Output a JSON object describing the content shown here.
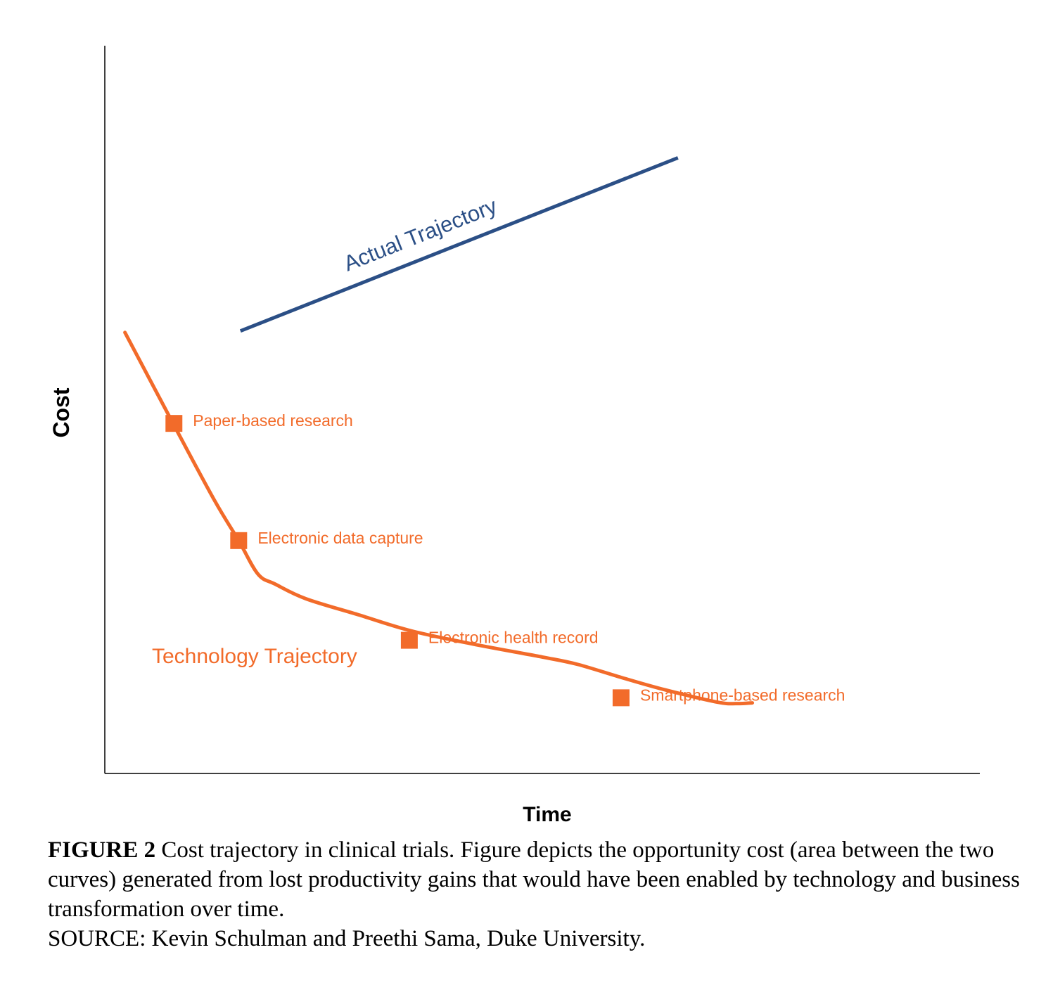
{
  "chart_data": {
    "type": "line",
    "title": "",
    "xlabel": "Time",
    "ylabel": "Cost",
    "x_ticks": "none",
    "y_ticks": "none",
    "grid": false,
    "legend": "none",
    "colors": {
      "actual": "#2b4f86",
      "technology": "#f26b2a",
      "axis": "#000000"
    },
    "series": [
      {
        "name": "Actual Trajectory",
        "label_style": "rotated along line",
        "points": [
          [
            0.155,
            0.608
          ],
          [
            0.655,
            0.846
          ]
        ]
      },
      {
        "name": "Technology Trajectory",
        "points": [
          [
            0.023,
            0.606
          ],
          [
            0.078,
            0.481
          ],
          [
            0.125,
            0.376
          ],
          [
            0.153,
            0.32
          ],
          [
            0.175,
            0.274
          ],
          [
            0.195,
            0.26
          ],
          [
            0.23,
            0.24
          ],
          [
            0.29,
            0.218
          ],
          [
            0.35,
            0.196
          ],
          [
            0.42,
            0.178
          ],
          [
            0.5,
            0.16
          ],
          [
            0.54,
            0.15
          ],
          [
            0.59,
            0.132
          ],
          [
            0.64,
            0.115
          ],
          [
            0.7,
            0.098
          ],
          [
            0.722,
            0.096
          ],
          [
            0.74,
            0.097
          ]
        ],
        "milestones": [
          {
            "label": "Paper-based research",
            "x": 0.079,
            "y": 0.481
          },
          {
            "label": "Electronic data capture",
            "x": 0.153,
            "y": 0.32
          },
          {
            "label": "Electronic health record",
            "x": 0.348,
            "y": 0.183
          },
          {
            "label": "Smartphone-based research",
            "x": 0.59,
            "y": 0.104
          }
        ]
      }
    ],
    "xlim": [
      0,
      1
    ],
    "ylim": [
      0,
      1
    ]
  },
  "caption": {
    "label": "FIGURE 2",
    "text": " Cost trajectory in clinical trials. Figure depicts the opportunity cost (area between the two curves) generated from lost productivity gains that would have been enabled by technology and business transformation over time.",
    "source": "SOURCE: Kevin Schulman and Preethi Sama, Duke University."
  }
}
